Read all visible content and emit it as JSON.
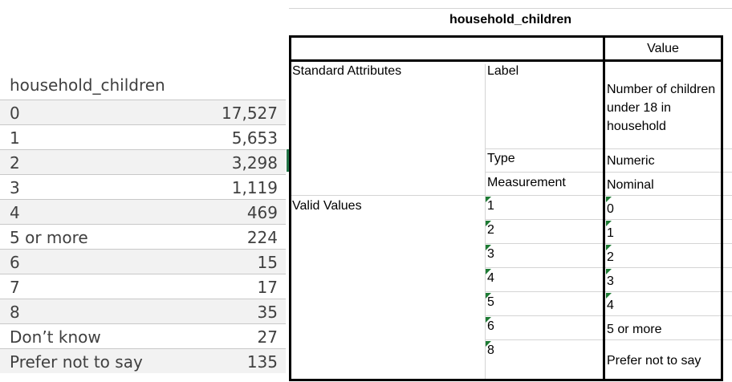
{
  "freq": {
    "title": "household_children",
    "rows": [
      {
        "label": "0",
        "value": "17,527"
      },
      {
        "label": "1",
        "value": "5,653"
      },
      {
        "label": "2",
        "value": "3,298"
      },
      {
        "label": "3",
        "value": "1,119"
      },
      {
        "label": "4",
        "value": "469"
      },
      {
        "label": "5 or more",
        "value": "224"
      },
      {
        "label": "6",
        "value": "15"
      },
      {
        "label": "7",
        "value": "17"
      },
      {
        "label": "8",
        "value": "35"
      },
      {
        "label": "Don’t know",
        "value": "27"
      },
      {
        "label": "Prefer not to say",
        "value": "135"
      }
    ]
  },
  "codebook": {
    "title": "household_children",
    "value_header": "Value",
    "standard_attributes": "Standard Attributes",
    "label_key": "Label",
    "label_value": "Number of children under 18 in household",
    "type_key": "Type",
    "type_value": "Numeric",
    "measurement_key": "Measurement",
    "measurement_value": "Nominal",
    "valid_values": "Valid Values",
    "codes": [
      {
        "code": "1",
        "label": "0"
      },
      {
        "code": "2",
        "label": "1"
      },
      {
        "code": "3",
        "label": "2"
      },
      {
        "code": "4",
        "label": "3"
      },
      {
        "code": "5",
        "label": "4"
      },
      {
        "code": "6",
        "label": "5 or more"
      },
      {
        "code": "8",
        "label": "Prefer not to say"
      }
    ]
  },
  "colors": {
    "grid": "#d4d4d4",
    "row_shade": "#f2f2f2",
    "text_gray": "#404040",
    "error_triangle": "#1e7b34"
  }
}
